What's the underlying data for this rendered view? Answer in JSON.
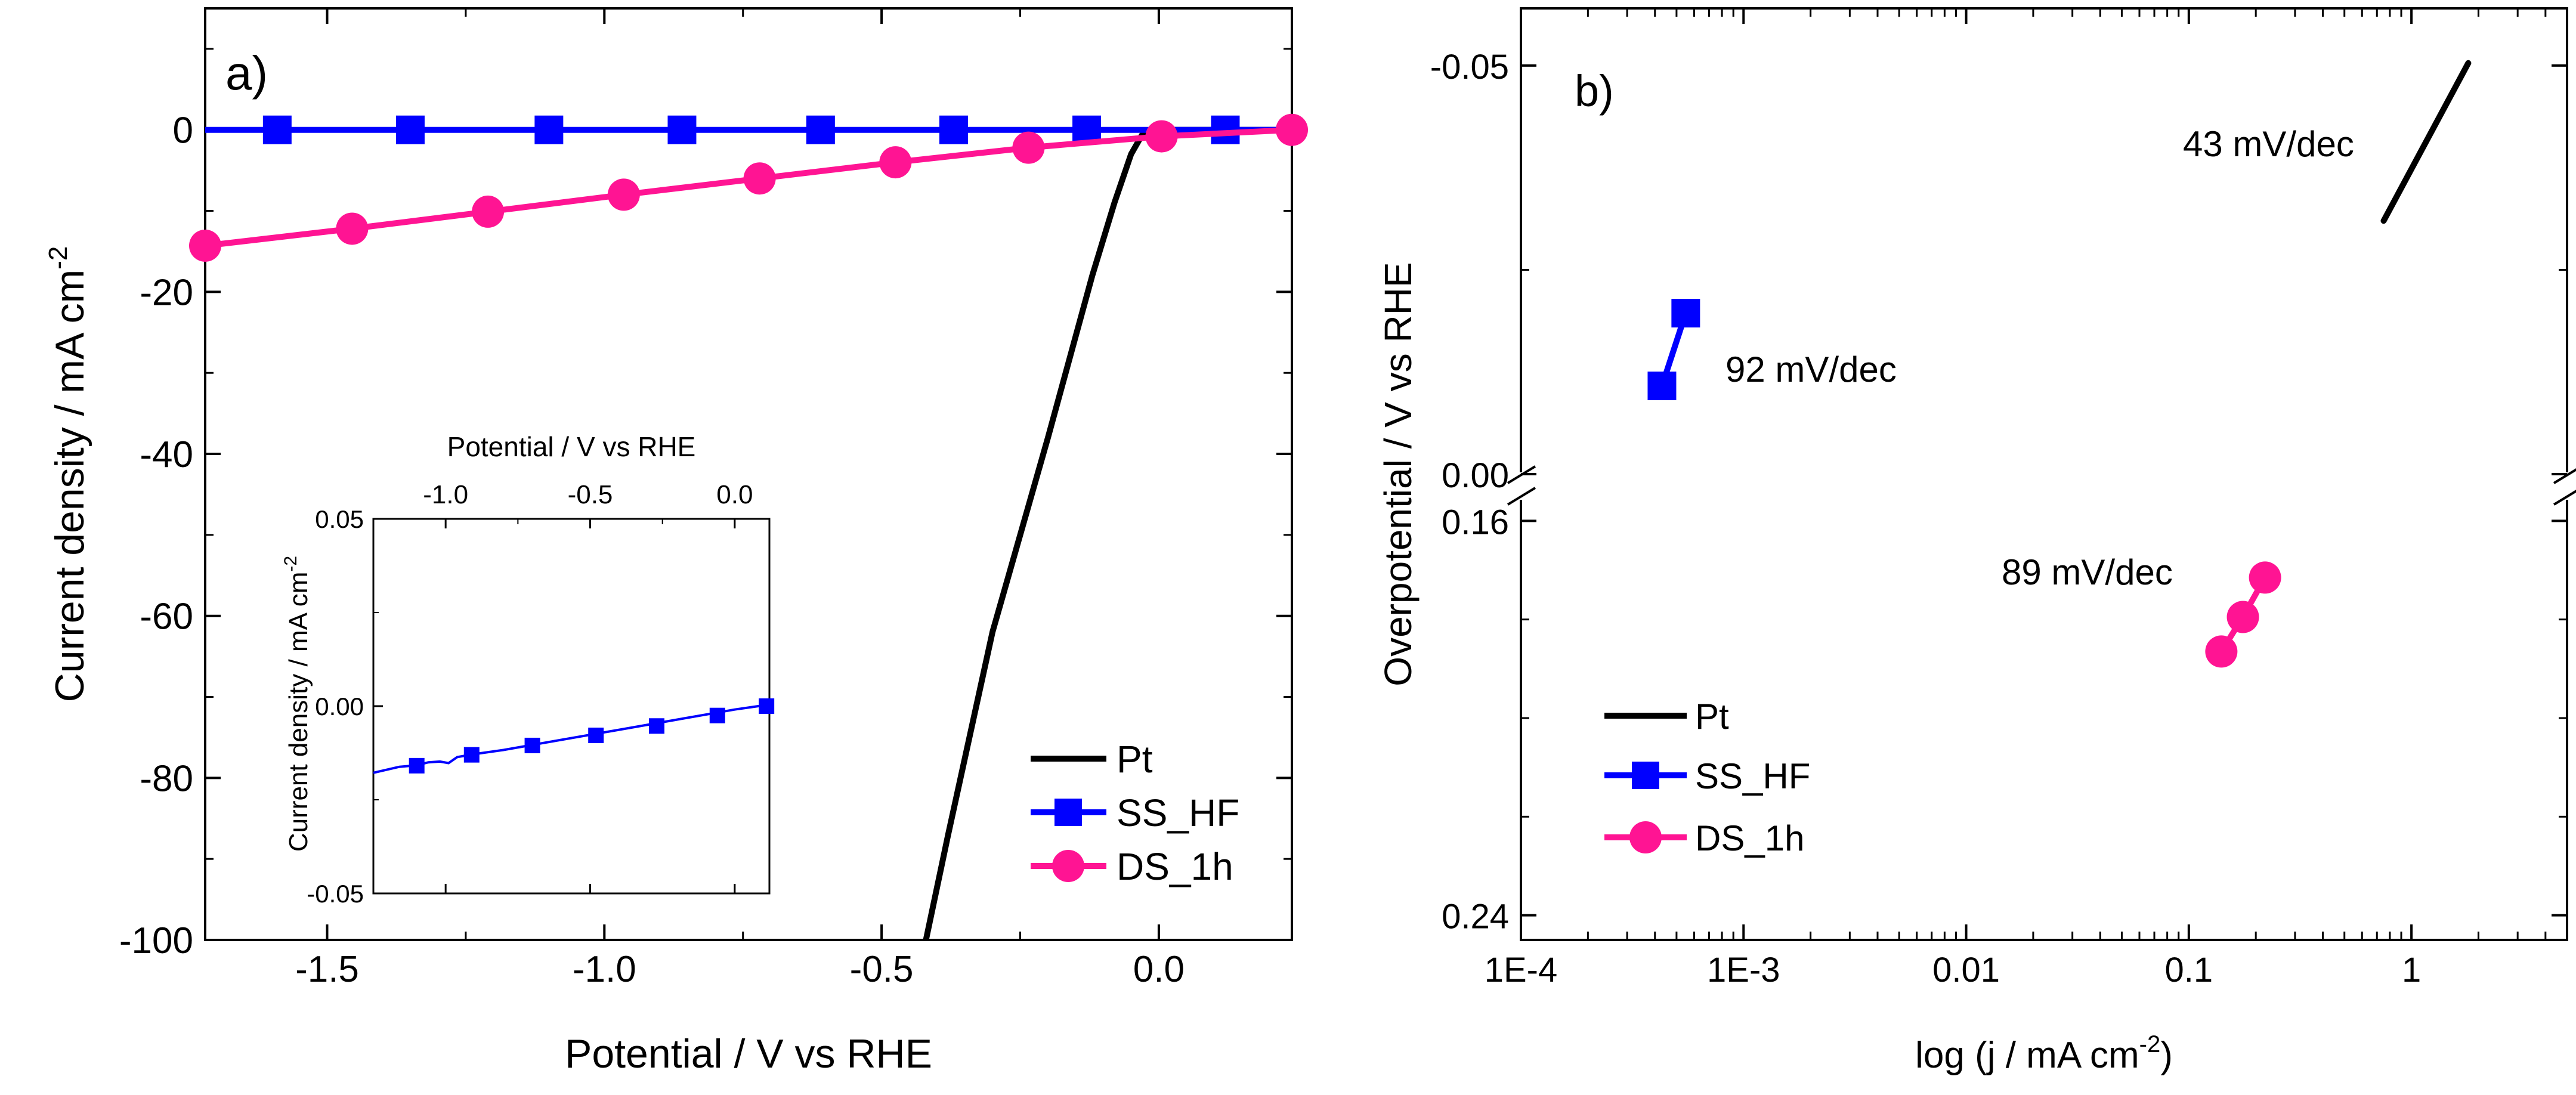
{
  "chart_data": [
    {
      "type": "line",
      "panel_label": "a)",
      "xlabel": "Potential / V vs RHE",
      "ylabel": "Current density / mA cm",
      "ylabel_sup": "-2",
      "xlim": [
        -1.72,
        0.24
      ],
      "ylim": [
        -100,
        15
      ],
      "xticks": [
        -1.5,
        -1.0,
        -0.5,
        0.0
      ],
      "xtick_labels": [
        "-1.5",
        "-1.0",
        "-0.5",
        "0.0"
      ],
      "yticks": [
        0,
        -20,
        -40,
        -60,
        -80,
        -100
      ],
      "ytick_labels": [
        "0",
        "-20",
        "-40",
        "-60",
        "-80",
        "-100"
      ],
      "series": [
        {
          "name": "Pt",
          "color": "#000000",
          "marker": "none",
          "x": [
            -0.42,
            -0.38,
            -0.3,
            -0.2,
            -0.12,
            -0.08,
            -0.05,
            -0.03,
            -0.01,
            0.02,
            0.1,
            0.24
          ],
          "y": [
            -100,
            -87,
            -62,
            -38,
            -18,
            -9,
            -3,
            -0.6,
            0,
            0,
            0,
            0
          ]
        },
        {
          "name": "SS_HF",
          "color": "#0000ff",
          "marker": "square",
          "x": [
            -1.72,
            0.24
          ],
          "y": [
            0,
            0
          ],
          "marker_x": [
            -1.59,
            -1.35,
            -1.1,
            -0.86,
            -0.61,
            -0.37,
            -0.13,
            0.12
          ],
          "marker_y": [
            0,
            0,
            0,
            0,
            0,
            0,
            0,
            0
          ]
        },
        {
          "name": "DS_1h",
          "color": "#ff1493",
          "marker": "circle",
          "x": [
            -1.72,
            -1.455,
            -1.21,
            -0.965,
            -0.72,
            -0.475,
            -0.235,
            0.005,
            0.24
          ],
          "y": [
            -14.3,
            -12.2,
            -10.1,
            -8.0,
            -6.0,
            -4.0,
            -2.2,
            -0.8,
            0
          ],
          "marker_x": [
            -1.72,
            -1.455,
            -1.21,
            -0.965,
            -0.72,
            -0.475,
            -0.235,
            0.005,
            0.24
          ],
          "marker_y": [
            -14.3,
            -12.2,
            -10.1,
            -8.0,
            -6.0,
            -4.0,
            -2.2,
            -0.8,
            0
          ]
        }
      ],
      "legend": {
        "position": "bottom-right",
        "entries": [
          "Pt",
          "SS_HF",
          "DS_1h"
        ]
      },
      "inset": {
        "type": "line",
        "xlabel": "Potential / V vs RHE",
        "ylabel": "Current density / mA cm",
        "ylabel_sup": "-2",
        "xlim": [
          -1.25,
          0.12
        ],
        "ylim": [
          -0.05,
          0.05
        ],
        "xticks": [
          -1.0,
          -0.5,
          0.0
        ],
        "xtick_labels": [
          "-1.0",
          "-0.5",
          "0.0"
        ],
        "yticks": [
          0.05,
          0.0,
          -0.05
        ],
        "ytick_labels": [
          "0.05",
          "0.00",
          "-0.05"
        ],
        "series": [
          {
            "name": "SS_HF",
            "color": "#0000ff",
            "marker": "square",
            "x": [
              -1.25,
              -1.16,
              -1.1,
              -1.06,
              -1.02,
              -0.99,
              -0.96,
              -0.9,
              -0.8,
              -0.6,
              -0.4,
              -0.2,
              0.0,
              0.1
            ],
            "y": [
              -0.0178,
              -0.0162,
              -0.0158,
              -0.015,
              -0.0148,
              -0.0152,
              -0.0136,
              -0.0128,
              -0.0117,
              -0.009,
              -0.0063,
              -0.0036,
              -0.0009,
              0.0002
            ],
            "marker_x": [
              -1.1,
              -0.91,
              -0.7,
              -0.48,
              -0.27,
              -0.06,
              0.11
            ],
            "marker_y": [
              -0.0159,
              -0.013,
              -0.0105,
              -0.0078,
              -0.0053,
              -0.0025,
              0.0
            ]
          }
        ]
      }
    },
    {
      "type": "scatter",
      "panel_label": "b)",
      "xlabel": "log (j / mA cm",
      "xlabel_sup": "-2",
      "xlabel_end": ")",
      "ylabel": "Overpotential / V vs RHE",
      "xscale": "log",
      "xlim": [
        0.0001,
        5
      ],
      "xticks": [
        0.0001,
        0.001,
        0.01,
        0.1,
        1
      ],
      "xtick_labels": [
        "1E-4",
        "1E-3",
        "0.01",
        "0.1",
        "1"
      ],
      "y_break": true,
      "y_upper": {
        "range": [
          -0.057,
          0.0
        ],
        "ticks": [
          -0.05,
          0.0
        ],
        "tick_labels": [
          "-0.05",
          "0.00"
        ]
      },
      "y_lower": {
        "range": [
          0.155,
          0.245
        ],
        "ticks": [
          0.16,
          0.24
        ],
        "tick_labels": [
          "0.16",
          "0.24"
        ]
      },
      "series": [
        {
          "name": "Pt",
          "color": "#000000",
          "marker": "none",
          "segment": "upper",
          "x": [
            0.75,
            1.8
          ],
          "y": [
            -0.031,
            -0.0503
          ]
        },
        {
          "name": "SS_HF",
          "color": "#0000ff",
          "marker": "square",
          "segment": "upper",
          "x": [
            0.00043,
            0.00055
          ],
          "y": [
            -0.0108,
            -0.0197
          ]
        },
        {
          "name": "DS_1h",
          "color": "#ff1493",
          "marker": "circle",
          "segment": "lower",
          "x": [
            0.14,
            0.175,
            0.22
          ],
          "y": [
            0.1865,
            0.1795,
            0.1715
          ]
        }
      ],
      "annotations": [
        {
          "text": "43 mV/dec",
          "near_series": "Pt"
        },
        {
          "text": "92 mV/dec",
          "near_series": "SS_HF"
        },
        {
          "text": "89 mV/dec",
          "near_series": "DS_1h"
        }
      ],
      "legend": {
        "position": "bottom-left",
        "entries": [
          "Pt",
          "SS_HF",
          "DS_1h"
        ]
      }
    }
  ]
}
